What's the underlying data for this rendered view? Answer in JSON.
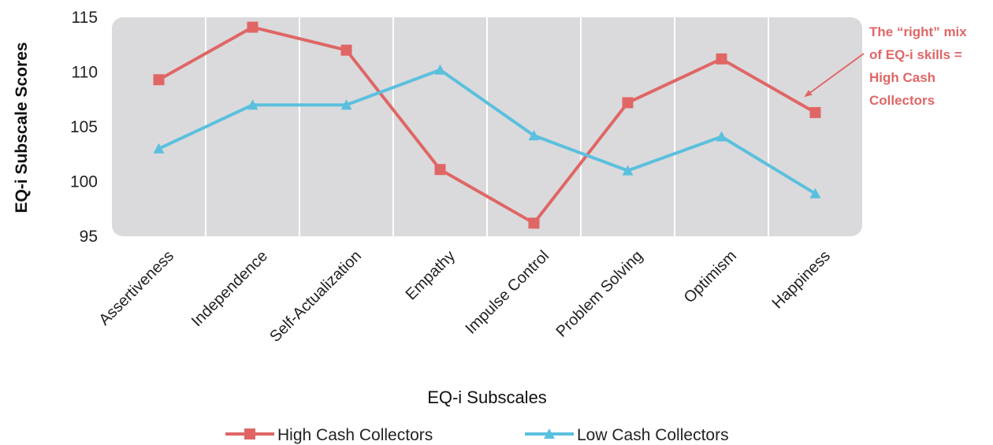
{
  "chart_data": {
    "type": "line",
    "xlabel": "EQ-i Subscales",
    "ylabel": "EQ-i Subscale Scores",
    "ylim": [
      95,
      115
    ],
    "yticks": [
      95,
      100,
      105,
      110,
      115
    ],
    "grid": "vertical",
    "legend_position": "bottom",
    "categories": [
      "Assertiveness",
      "Independence",
      "Self-Actualization",
      "Empathy",
      "Impulse Control",
      "Problem Solving",
      "Optimism",
      "Happiness"
    ],
    "series": [
      {
        "name": "High Cash Collectors",
        "color": "#e06666",
        "marker": "square",
        "values": [
          109.3,
          114.1,
          112.0,
          101.1,
          96.2,
          107.2,
          111.2,
          106.3
        ]
      },
      {
        "name": "Low Cash Collectors",
        "color": "#5bc0de",
        "marker": "triangle",
        "values": [
          103.0,
          107.0,
          107.0,
          110.2,
          104.2,
          101.0,
          104.1,
          98.9
        ]
      }
    ],
    "annotation": {
      "lines": [
        "The “right” mix",
        "of EQ-i skills =",
        "High Cash",
        "Collectors"
      ],
      "color": "#e06666"
    }
  }
}
